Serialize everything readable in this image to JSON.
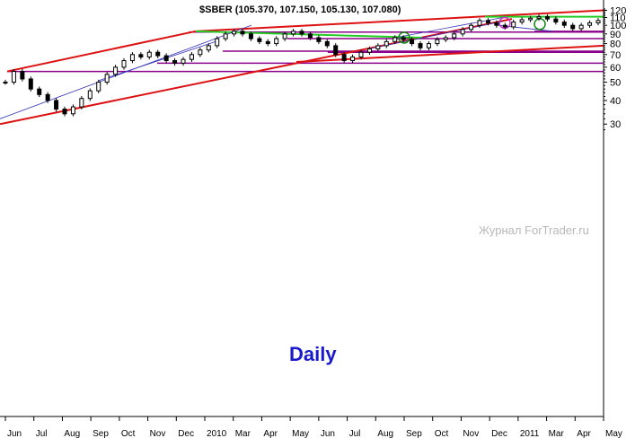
{
  "chart_data": {
    "type": "candlestick",
    "title": "$SBER (105.370, 107.150, 105.130, 107.080)",
    "period_label": "Daily",
    "watermark": "Журнал ForTrader.ru",
    "y_scale": "log",
    "ylim": [
      28,
      122
    ],
    "y_ticks": [
      30,
      40,
      50,
      60,
      70,
      80,
      90,
      100,
      110,
      120
    ],
    "x_ticks": [
      "Jun",
      "Jul",
      "Aug",
      "Sep",
      "Oct",
      "Nov",
      "Dec",
      "2010",
      "Mar",
      "Apr",
      "May",
      "Jun",
      "Jul",
      "Aug",
      "Sep",
      "Oct",
      "Nov",
      "Dec",
      "2011",
      "Mar",
      "Apr",
      "May"
    ],
    "grid": false,
    "series": [
      {
        "values": [
          50,
          57,
          52,
          46,
          43,
          40,
          36,
          34,
          37,
          41,
          45,
          50,
          55,
          60,
          65,
          70,
          68,
          72,
          69,
          65,
          63,
          66,
          70,
          74,
          78,
          85,
          90,
          93,
          90,
          85,
          82,
          80,
          85,
          90,
          93,
          90,
          86,
          82,
          78,
          70,
          65,
          68,
          72,
          75,
          78,
          82,
          86,
          84,
          80,
          76,
          80,
          84,
          86,
          90,
          95,
          100,
          106,
          103,
          100,
          98,
          104,
          107,
          109,
          111,
          108,
          104,
          100,
          96,
          100,
          103,
          106
        ]
      }
    ],
    "support_levels": [
      57,
      63,
      73,
      72,
      92,
      85,
      93
    ],
    "colors": {
      "trend": "#dd1111",
      "level": "#8b008b",
      "breakout": "#22cc22",
      "channel": "#3333bb",
      "candles": "#000000"
    }
  }
}
